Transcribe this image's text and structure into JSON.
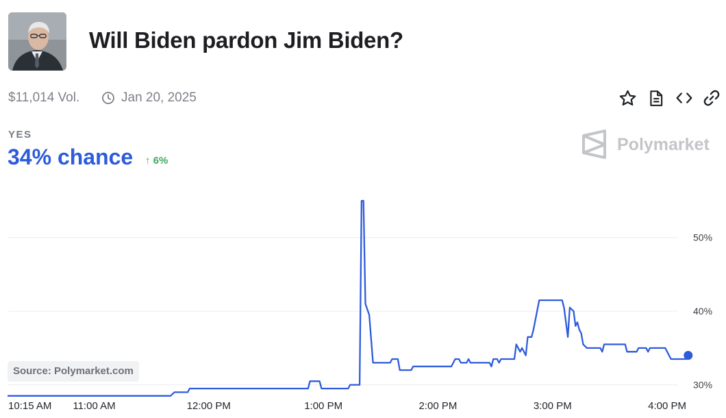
{
  "header": {
    "title": "Will Biden pardon Jim Biden?",
    "volume": "$11,014 Vol.",
    "date": "Jan 20, 2025"
  },
  "icons": {
    "avatar": "portrait-photo",
    "clock": "clock-icon",
    "star": "star-icon",
    "document": "document-icon",
    "embed": "code-embed-icon",
    "link": "link-icon",
    "brand": "polymarket-logo"
  },
  "outcome": {
    "label": "YES",
    "chance": "34% chance",
    "delta": "6%",
    "delta_direction": "up"
  },
  "brand": {
    "name": "Polymarket"
  },
  "source": "Source: Polymarket.com",
  "colors": {
    "line": "#2d5bdb",
    "positive": "#3fa960",
    "muted_text": "#7c8087"
  },
  "chart_data": {
    "type": "line",
    "title": "",
    "xlabel": "",
    "ylabel": "",
    "ylim": [
      29.5,
      55
    ],
    "y_ticks": [
      {
        "value": 30,
        "label": "30%"
      },
      {
        "value": 40,
        "label": "40%"
      },
      {
        "value": 50,
        "label": "50%"
      }
    ],
    "x_range": [
      "10:15",
      "16:10"
    ],
    "x_ticks": [
      {
        "time": "10:15",
        "label": "10:15 AM"
      },
      {
        "time": "11:00",
        "label": "11:00 AM"
      },
      {
        "time": "12:00",
        "label": "12:00 PM"
      },
      {
        "time": "13:00",
        "label": "1:00 PM"
      },
      {
        "time": "14:00",
        "label": "2:00 PM"
      },
      {
        "time": "15:00",
        "label": "3:00 PM"
      },
      {
        "time": "16:00",
        "label": "4:00 PM"
      }
    ],
    "grid": "horizontal",
    "series": [
      {
        "name": "",
        "points": [
          [
            "10:15",
            28.5
          ],
          [
            "11:40",
            28.5
          ],
          [
            "11:42",
            29.0
          ],
          [
            "11:49",
            29.0
          ],
          [
            "11:50",
            29.5
          ],
          [
            "12:52",
            29.5
          ],
          [
            "12:53",
            30.5
          ],
          [
            "12:58",
            30.5
          ],
          [
            "12:59",
            29.5
          ],
          [
            "13:13",
            29.5
          ],
          [
            "13:14",
            30.0
          ],
          [
            "13:19",
            30.0
          ],
          [
            "13:20",
            55.0
          ],
          [
            "13:21",
            55.0
          ],
          [
            "13:22",
            41.0
          ],
          [
            "13:24",
            39.5
          ],
          [
            "13:26",
            33.0
          ],
          [
            "13:35",
            33.0
          ],
          [
            "13:36",
            33.5
          ],
          [
            "13:39",
            33.5
          ],
          [
            "13:40",
            32.0
          ],
          [
            "13:46",
            32.0
          ],
          [
            "13:47",
            32.5
          ],
          [
            "14:07",
            32.5
          ],
          [
            "14:09",
            33.5
          ],
          [
            "14:11",
            33.5
          ],
          [
            "14:12",
            33.0
          ],
          [
            "14:15",
            33.0
          ],
          [
            "14:16",
            33.5
          ],
          [
            "14:17",
            33.0
          ],
          [
            "14:27",
            33.0
          ],
          [
            "14:28",
            32.5
          ],
          [
            "14:29",
            33.5
          ],
          [
            "14:31",
            33.5
          ],
          [
            "14:32",
            33.0
          ],
          [
            "14:33",
            33.5
          ],
          [
            "14:40",
            33.5
          ],
          [
            "14:41",
            35.5
          ],
          [
            "14:43",
            34.5
          ],
          [
            "14:44",
            35.0
          ],
          [
            "14:46",
            34.0
          ],
          [
            "14:47",
            36.5
          ],
          [
            "14:49",
            36.5
          ],
          [
            "14:50",
            37.5
          ],
          [
            "14:53",
            41.5
          ],
          [
            "15:05",
            41.5
          ],
          [
            "15:06",
            40.5
          ],
          [
            "15:08",
            36.5
          ],
          [
            "15:09",
            40.5
          ],
          [
            "15:11",
            40.0
          ],
          [
            "15:12",
            38.0
          ],
          [
            "15:13",
            38.5
          ],
          [
            "15:14",
            37.5
          ],
          [
            "15:15",
            37.0
          ],
          [
            "15:16",
            35.5
          ],
          [
            "15:18",
            35.0
          ],
          [
            "15:25",
            35.0
          ],
          [
            "15:26",
            34.5
          ],
          [
            "15:27",
            35.5
          ],
          [
            "15:38",
            35.5
          ],
          [
            "15:39",
            34.5
          ],
          [
            "15:44",
            34.5
          ],
          [
            "15:45",
            35.0
          ],
          [
            "15:49",
            35.0
          ],
          [
            "15:50",
            34.5
          ],
          [
            "15:51",
            35.0
          ],
          [
            "15:59",
            35.0
          ],
          [
            "16:00",
            34.5
          ],
          [
            "16:02",
            33.5
          ],
          [
            "16:10",
            33.5
          ],
          [
            "16:11",
            34.0
          ]
        ]
      }
    ]
  }
}
